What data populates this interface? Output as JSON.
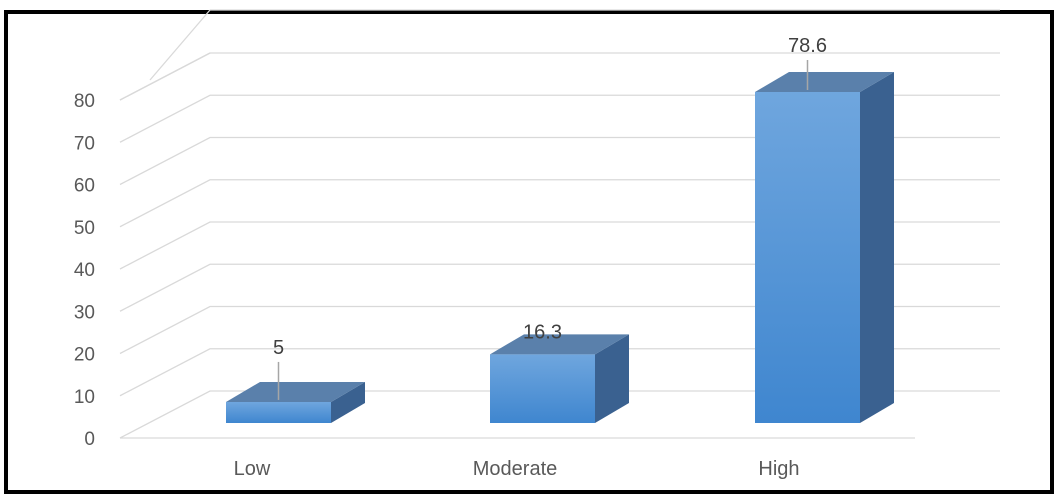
{
  "chart_data": {
    "type": "bar",
    "style": "3d-column",
    "categories": [
      "Low",
      "Moderate",
      "High"
    ],
    "values": [
      5,
      16.3,
      78.6
    ],
    "data_labels": [
      "5",
      "16.3",
      "78.6"
    ],
    "title": "",
    "xlabel": "",
    "ylabel": "",
    "ylim": [
      0,
      80
    ],
    "yticks": [
      "0",
      "10",
      "20",
      "30",
      "40",
      "50",
      "60",
      "70",
      "80"
    ],
    "grid": true,
    "legend": "none",
    "colors": {
      "bar_front_top": "#6fa6de",
      "bar_front_bottom": "#3f86cf",
      "bar_side": "#3a6190",
      "bar_top": "#5a80ab",
      "gridline": "#d9d9d9",
      "text": "#595959",
      "frame": "#000000"
    }
  }
}
